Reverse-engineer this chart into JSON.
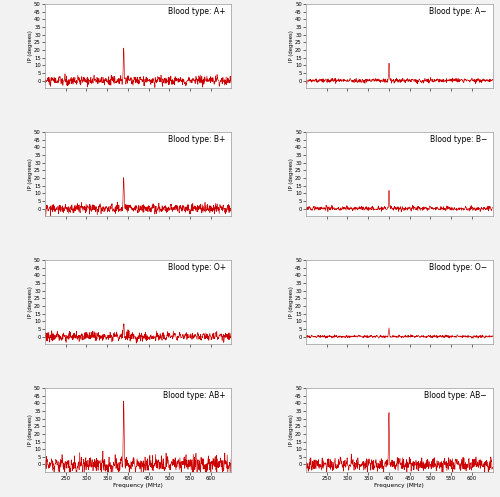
{
  "subplots": [
    {
      "title": "Blood type: A+",
      "peak": 20,
      "noise_level": 2.2,
      "peak_freq": 390,
      "seed": 10,
      "ylim": [
        -5,
        50
      ]
    },
    {
      "title": "Blood type: A−",
      "peak": 12,
      "noise_level": 1.0,
      "peak_freq": 400,
      "seed": 11,
      "ylim": [
        -5,
        50
      ]
    },
    {
      "title": "Blood type: B+",
      "peak": 20,
      "noise_level": 2.2,
      "peak_freq": 390,
      "seed": 20,
      "ylim": [
        -5,
        50
      ]
    },
    {
      "title": "Blood type: B−",
      "peak": 12,
      "noise_level": 1.0,
      "peak_freq": 400,
      "seed": 21,
      "ylim": [
        -5,
        50
      ]
    },
    {
      "title": "Blood type: O+",
      "peak": 10,
      "noise_level": 2.0,
      "peak_freq": 390,
      "seed": 30,
      "ylim": [
        -5,
        50
      ]
    },
    {
      "title": "Blood type: O−",
      "peak": 5,
      "noise_level": 0.6,
      "peak_freq": 400,
      "seed": 31,
      "ylim": [
        -5,
        50
      ]
    },
    {
      "title": "Blood type: AB+",
      "peak": 42,
      "noise_level": 3.8,
      "peak_freq": 390,
      "seed": 40,
      "ylim": [
        -5,
        50
      ]
    },
    {
      "title": "Blood type: AB−",
      "peak": 33,
      "noise_level": 3.0,
      "peak_freq": 400,
      "seed": 41,
      "ylim": [
        -5,
        50
      ]
    }
  ],
  "xlim": [
    200,
    650
  ],
  "xlabel": "Frequency (MHz)",
  "ylabel": "IP (degrees)",
  "line_color": "#cc0000",
  "bg_color": "#ffffff",
  "fig_bg_color": "#f2f2f2",
  "xticks": [
    250,
    300,
    350,
    400,
    450,
    500,
    550,
    600
  ],
  "yticks": [
    0,
    5,
    10,
    15,
    20,
    25,
    30,
    35,
    40,
    45,
    50
  ]
}
